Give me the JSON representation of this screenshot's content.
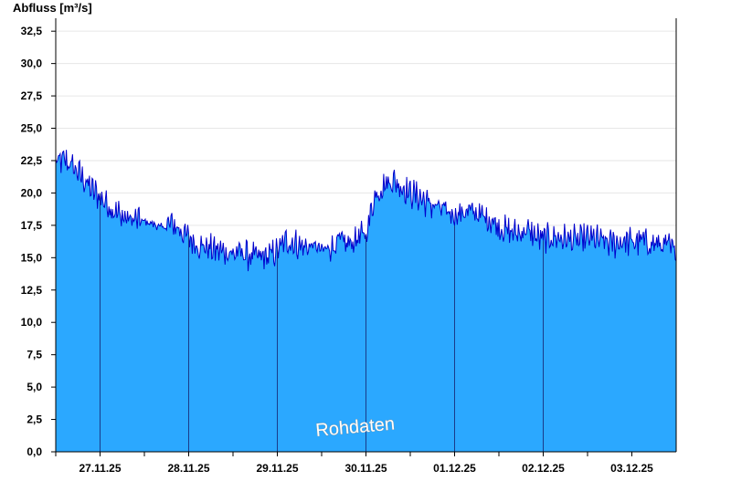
{
  "chart_data": {
    "type": "area",
    "ylabel": "Abfluss [m³/s]",
    "ylim": [
      0,
      33.5
    ],
    "yticks": [
      "0,0",
      "2,5",
      "5,0",
      "7,5",
      "10,0",
      "12,5",
      "15,0",
      "17,5",
      "20,0",
      "22,5",
      "25,0",
      "27,5",
      "30,0",
      "32,5"
    ],
    "xlabels": [
      "27.11.25",
      "28.11.25",
      "29.11.25",
      "30.11.25",
      "01.12.25",
      "02.12.25",
      "03.12.25"
    ],
    "x_start_day": 26.5,
    "x_end_day": 33.5,
    "grid": true,
    "watermark": "Rohdaten",
    "colors": {
      "fill": "#2ba8ff",
      "line": "#0000cc",
      "grid": "#e6e6e6",
      "daydivider": "#1a3a8a",
      "axis": "#000000"
    },
    "series": [
      {
        "name": "Abfluss",
        "x": [
          26.5,
          26.6,
          26.7,
          26.8,
          26.9,
          27.0,
          27.1,
          27.2,
          27.3,
          27.4,
          27.5,
          27.6,
          27.7,
          27.8,
          27.9,
          28.0,
          28.1,
          28.2,
          28.3,
          28.4,
          28.5,
          28.6,
          28.7,
          28.8,
          28.9,
          29.0,
          29.1,
          29.2,
          29.3,
          29.4,
          29.5,
          29.6,
          29.7,
          29.8,
          29.9,
          30.0,
          30.1,
          30.2,
          30.3,
          30.4,
          30.5,
          30.6,
          30.7,
          30.8,
          30.9,
          31.0,
          31.1,
          31.2,
          31.3,
          31.4,
          31.5,
          31.6,
          31.7,
          31.8,
          31.9,
          32.0,
          32.1,
          32.2,
          32.3,
          32.4,
          32.5,
          32.6,
          32.7,
          32.8,
          32.9,
          33.0,
          33.1,
          33.2,
          33.3,
          33.4,
          33.5
        ],
        "values": [
          22.3,
          22.5,
          22.0,
          21.2,
          20.3,
          19.7,
          19.0,
          18.4,
          18.0,
          17.9,
          17.8,
          17.6,
          17.3,
          17.6,
          17.2,
          16.5,
          16.0,
          15.8,
          15.6,
          15.5,
          15.3,
          15.4,
          15.1,
          15.0,
          15.1,
          15.5,
          16.3,
          16.1,
          15.8,
          16.0,
          15.6,
          15.8,
          16.2,
          16.0,
          16.5,
          16.8,
          19.8,
          20.6,
          21.0,
          20.5,
          20.0,
          19.7,
          19.2,
          18.9,
          18.6,
          18.3,
          18.5,
          18.6,
          18.2,
          18.0,
          17.4,
          17.0,
          16.9,
          17.1,
          16.7,
          16.4,
          16.6,
          16.5,
          16.4,
          16.3,
          16.5,
          16.4,
          16.2,
          16.1,
          16.3,
          16.2,
          16.3,
          16.1,
          16.0,
          15.9,
          15.4
        ]
      }
    ]
  }
}
